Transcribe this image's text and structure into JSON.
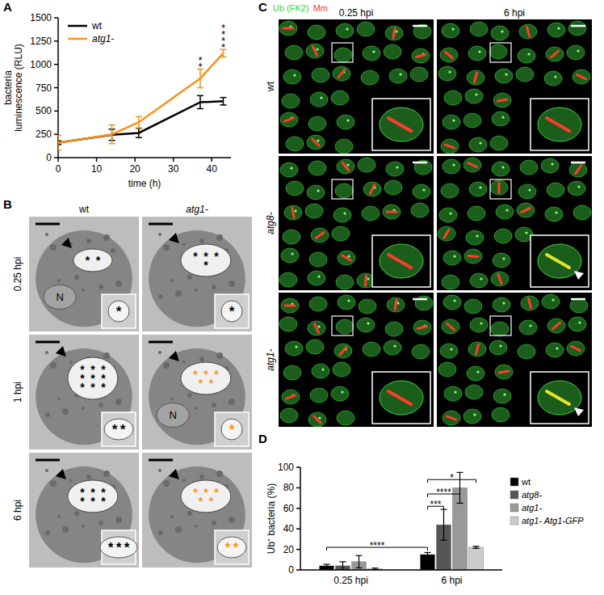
{
  "chart_data": [
    {
      "panel": "A",
      "type": "line",
      "x_label": "time (h)",
      "y_label": [
        "bacteria",
        "luminescence (RLU)"
      ],
      "x": [
        0,
        14,
        21,
        37,
        43
      ],
      "xlim": [
        0,
        45
      ],
      "xticks": [
        0,
        10,
        20,
        30,
        40
      ],
      "ylim": [
        0,
        1500
      ],
      "yticks": [
        0,
        250,
        500,
        750,
        1000,
        1250,
        1500
      ],
      "grid": false,
      "legend": "top-left",
      "series": [
        {
          "name": "wt",
          "color": "#000000",
          "values": [
            160,
            245,
            265,
            595,
            605
          ],
          "errors": [
            20,
            60,
            50,
            70,
            40
          ]
        },
        {
          "name": "atg1-",
          "color": "#f7941d",
          "values": [
            160,
            250,
            380,
            850,
            1120
          ],
          "errors": [
            80,
            100,
            60,
            100,
            40
          ]
        }
      ],
      "annotations": [
        {
          "text": "**",
          "x": 37,
          "y": 990
        },
        {
          "text": "****",
          "x": 43,
          "y": 1200
        }
      ]
    },
    {
      "panel": "D",
      "type": "bar",
      "y_label": "Ub⁺ bacteria (%)",
      "categories": [
        "0.25 hpi",
        "6 hpi"
      ],
      "ylim": [
        0,
        100
      ],
      "yticks": [
        0,
        20,
        40,
        60,
        80,
        100
      ],
      "grid": false,
      "legend": "right",
      "series": [
        {
          "name": "wt",
          "color": "#000000",
          "values": [
            4,
            15
          ],
          "errors": [
            1.5,
            2
          ]
        },
        {
          "name": "atg8-",
          "color": "#555555",
          "values": [
            4,
            44
          ],
          "errors": [
            4,
            15
          ]
        },
        {
          "name": "atg1-",
          "color": "#999999",
          "values": [
            8,
            80
          ],
          "errors": [
            6,
            15
          ]
        },
        {
          "name": "atg1- Atg1-GFP",
          "color": "#cccccc",
          "values": [
            1,
            22
          ],
          "errors": [
            0.8,
            1
          ]
        }
      ],
      "annotations": [
        {
          "text": "****",
          "y": 22,
          "from_category": 0,
          "from_series": 0,
          "to_category": 1,
          "to_series": 0
        },
        {
          "text": "***",
          "y": 62,
          "from_category": 1,
          "from_series": 0,
          "to_category": 1,
          "to_series": 1
        },
        {
          "text": "****",
          "y": 74,
          "from_category": 1,
          "from_series": 0,
          "to_category": 1,
          "to_series": 2
        },
        {
          "text": "*",
          "y": 88,
          "from_category": 1,
          "from_series": 0,
          "to_category": 1,
          "to_series": 3
        }
      ]
    }
  ],
  "micrographs": {
    "label": "B",
    "columns": [
      "wt",
      "atg1-"
    ],
    "rows": [
      "0.25 hpi",
      "1 hpi",
      "6 hpi"
    ],
    "bacteria_marker": "*",
    "nucleus_label": "N",
    "images": [
      [
        {
          "nucleus": true,
          "asterisks": 2,
          "inset_asterisks": 1,
          "asterisk_color": "#000000"
        },
        {
          "nucleus": false,
          "asterisks": 4,
          "inset_asterisks": 1,
          "asterisk_color": "#000000"
        }
      ],
      [
        {
          "nucleus": false,
          "asterisks": 9,
          "inset_asterisks": 2,
          "asterisk_color": "#000000"
        },
        {
          "nucleus": true,
          "asterisks": 5,
          "inset_asterisks": 1,
          "asterisk_color": "#f7941d"
        }
      ],
      [
        {
          "nucleus": false,
          "asterisks": 6,
          "inset_asterisks": 3,
          "asterisk_color": "#000000"
        },
        {
          "nucleus": false,
          "asterisks": 5,
          "inset_asterisks": 2,
          "asterisk_color": "#f7941d"
        }
      ]
    ]
  },
  "fluorescence": {
    "label": "C",
    "legend": [
      {
        "text": "Ub (FK2)",
        "color": "#3cd43c"
      },
      {
        "text": "Mm",
        "color": "#ff3b30"
      }
    ],
    "columns": [
      "0.25 hpi",
      "6 hpi"
    ],
    "rows": [
      "wt",
      "atg8-",
      "atg1-"
    ],
    "arrowheads": [
      [
        false,
        false
      ],
      [
        false,
        true
      ],
      [
        false,
        true
      ]
    ]
  }
}
